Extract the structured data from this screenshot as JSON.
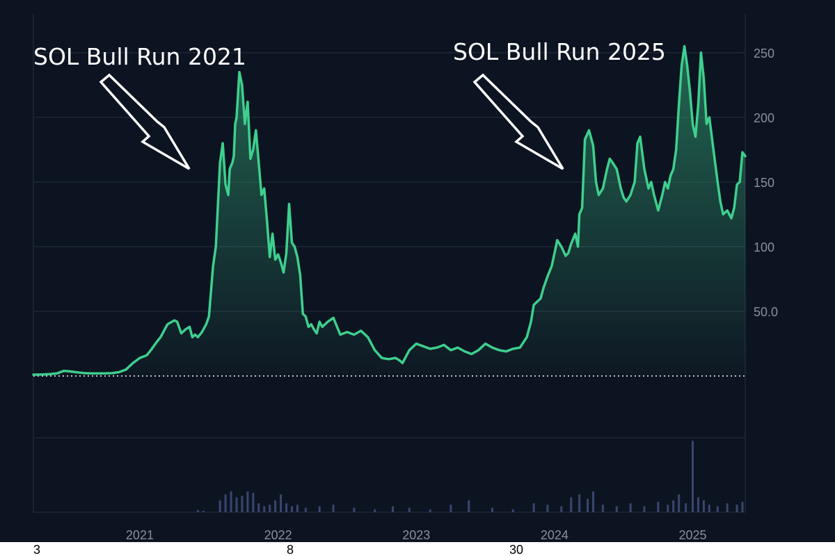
{
  "chart_data": {
    "type": "area",
    "title": "",
    "xlabel": "",
    "ylabel": "",
    "ylim": [
      0,
      280
    ],
    "grid": true,
    "colors": {
      "background": "#0d1421",
      "line": "#3ecf8e",
      "fill": "#3ecf8e",
      "grid": "#263042",
      "volume": "#3a4670",
      "zero_line": "#ffffff"
    },
    "y_ticks": [
      {
        "value": 50,
        "label": "50.0"
      },
      {
        "value": 100,
        "label": "100"
      },
      {
        "value": 150,
        "label": "150"
      },
      {
        "value": 200,
        "label": "200"
      },
      {
        "value": 250,
        "label": "250"
      }
    ],
    "x_ticks": [
      {
        "value": 2021,
        "label": "2021"
      },
      {
        "value": 2022,
        "label": "2022"
      },
      {
        "value": 2023,
        "label": "2023"
      },
      {
        "value": 2024,
        "label": "2024"
      },
      {
        "value": 2025,
        "label": "2025"
      }
    ],
    "x_range": [
      2020.23,
      2025.38
    ],
    "series": [
      {
        "x": [
          2020.23,
          2020.3,
          2020.35,
          2020.4,
          2020.45,
          2020.5,
          2020.55,
          2020.6,
          2020.65,
          2020.7,
          2020.75,
          2020.8,
          2020.85,
          2020.9,
          2020.95,
          2021.0,
          2021.05,
          2021.08,
          2021.12,
          2021.15,
          2021.2,
          2021.25,
          2021.27,
          2021.3,
          2021.33,
          2021.36,
          2021.38,
          2021.4,
          2021.42,
          2021.45,
          2021.48,
          2021.5,
          2021.53,
          2021.55,
          2021.58,
          2021.6,
          2021.62,
          2021.64,
          2021.65,
          2021.67,
          2021.68,
          2021.69,
          2021.7,
          2021.72,
          2021.74,
          2021.76,
          2021.78,
          2021.8,
          2021.82,
          2021.84,
          2021.86,
          2021.88,
          2021.9,
          2021.92,
          2021.94,
          2021.96,
          2021.98,
          2022.0,
          2022.02,
          2022.04,
          2022.06,
          2022.08,
          2022.1,
          2022.12,
          2022.14,
          2022.16,
          2022.18,
          2022.2,
          2022.22,
          2022.24,
          2022.26,
          2022.28,
          2022.3,
          2022.32,
          2022.34,
          2022.36,
          2022.4,
          2022.45,
          2022.5,
          2022.55,
          2022.6,
          2022.65,
          2022.7,
          2022.75,
          2022.8,
          2022.85,
          2022.88,
          2022.9,
          2022.95,
          2023.0,
          2023.05,
          2023.1,
          2023.15,
          2023.2,
          2023.25,
          2023.3,
          2023.35,
          2023.4,
          2023.45,
          2023.5,
          2023.55,
          2023.6,
          2023.65,
          2023.7,
          2023.75,
          2023.8,
          2023.83,
          2023.85,
          2023.88,
          2023.9,
          2023.92,
          2023.95,
          2023.98,
          2024.0,
          2024.02,
          2024.05,
          2024.08,
          2024.1,
          2024.12,
          2024.15,
          2024.17,
          2024.18,
          2024.2,
          2024.22,
          2024.25,
          2024.28,
          2024.3,
          2024.32,
          2024.35,
          2024.38,
          2024.4,
          2024.42,
          2024.45,
          2024.48,
          2024.5,
          2024.52,
          2024.55,
          2024.58,
          2024.6,
          2024.62,
          2024.65,
          2024.68,
          2024.7,
          2024.72,
          2024.75,
          2024.78,
          2024.8,
          2024.82,
          2024.84,
          2024.86,
          2024.88,
          2024.9,
          2024.92,
          2024.94,
          2024.96,
          2024.98,
          2025.0,
          2025.02,
          2025.04,
          2025.06,
          2025.08,
          2025.1,
          2025.12,
          2025.15,
          2025.18,
          2025.2,
          2025.22,
          2025.25,
          2025.28,
          2025.3,
          2025.32,
          2025.34,
          2025.36,
          2025.38
        ],
        "values": [
          1.0,
          1.2,
          1.5,
          2.0,
          4.0,
          3.5,
          2.8,
          2.2,
          2.0,
          2.0,
          2.0,
          2.2,
          3.0,
          5.0,
          10.0,
          14.0,
          16.0,
          20.0,
          26.0,
          30.0,
          40.0,
          43.0,
          42.0,
          33.0,
          36.0,
          38.0,
          30.0,
          32.0,
          30.0,
          34.0,
          40.0,
          46.0,
          85.0,
          100.0,
          165.0,
          180.0,
          148.0,
          140.0,
          160.0,
          165.0,
          170.0,
          195.0,
          200.0,
          235.0,
          225.0,
          195.0,
          212.0,
          168.0,
          175.0,
          190.0,
          165.0,
          140.0,
          145.0,
          120.0,
          92.0,
          110.0,
          90.0,
          94.0,
          88.0,
          80.0,
          95.0,
          133.0,
          103.0,
          100.0,
          92.0,
          78.0,
          48.0,
          46.0,
          38.0,
          40.0,
          36.0,
          33.0,
          42.0,
          38.0,
          40.0,
          42.0,
          45.0,
          32.0,
          34.0,
          32.0,
          35.0,
          30.0,
          20.0,
          14.0,
          13.0,
          14.0,
          12.0,
          10.0,
          20.0,
          25.0,
          23.0,
          21.0,
          22.0,
          24.0,
          20.0,
          22.0,
          19.0,
          17.0,
          20.0,
          25.0,
          22.0,
          20.0,
          19.0,
          21.0,
          22.0,
          30.0,
          42.0,
          55.0,
          58.0,
          60.0,
          68.0,
          77.0,
          85.0,
          95.0,
          105.0,
          100.0,
          93.0,
          95.0,
          102.0,
          110.0,
          100.0,
          125.0,
          130.0,
          183.0,
          190.0,
          178.0,
          150.0,
          140.0,
          145.0,
          160.0,
          168.0,
          165.0,
          160.0,
          145.0,
          138.0,
          135.0,
          140.0,
          150.0,
          180.0,
          185.0,
          160.0,
          145.0,
          150.0,
          140.0,
          128.0,
          140.0,
          150.0,
          145.0,
          155.0,
          160.0,
          175.0,
          210.0,
          240.0,
          255.0,
          240.0,
          220.0,
          195.0,
          185.0,
          210.0,
          250.0,
          230.0,
          195.0,
          200.0,
          175.0,
          150.0,
          135.0,
          125.0,
          128.0,
          122.0,
          130.0,
          148.0,
          150.0,
          173.0,
          170.0
        ]
      }
    ],
    "annotations": [
      {
        "text": "SOL Bull Run 2021"
      },
      {
        "text": "SOL Bull Run 2025"
      }
    ],
    "volume": {
      "x": [
        2021.42,
        2021.46,
        2021.58,
        2021.62,
        2021.66,
        2021.7,
        2021.74,
        2021.78,
        2021.82,
        2021.86,
        2021.9,
        2021.94,
        2021.98,
        2022.02,
        2022.06,
        2022.1,
        2022.14,
        2022.2,
        2022.3,
        2022.4,
        2022.55,
        2022.7,
        2022.83,
        2022.95,
        2023.1,
        2023.25,
        2023.38,
        2023.55,
        2023.7,
        2023.85,
        2023.95,
        2024.05,
        2024.12,
        2024.18,
        2024.24,
        2024.28,
        2024.35,
        2024.45,
        2024.55,
        2024.65,
        2024.75,
        2024.82,
        2024.86,
        2024.9,
        2024.95,
        2025.0,
        2025.04,
        2025.08,
        2025.12,
        2025.18,
        2025.25,
        2025.32,
        2025.36
      ],
      "values": [
        1.5,
        1.0,
        8,
        12,
        14,
        10,
        11,
        14,
        13,
        6,
        4,
        5,
        8,
        12,
        6,
        4,
        5,
        3,
        4,
        5,
        3,
        2,
        4,
        3,
        2,
        5,
        8,
        3,
        2,
        6,
        5,
        4,
        10,
        12,
        9,
        14,
        5,
        4,
        6,
        4,
        7,
        5,
        8,
        12,
        6,
        48,
        10,
        8,
        5,
        4,
        6,
        5,
        7
      ],
      "ylim": [
        0,
        50
      ]
    },
    "bottom_labels": [
      "3",
      "8",
      "30"
    ]
  }
}
